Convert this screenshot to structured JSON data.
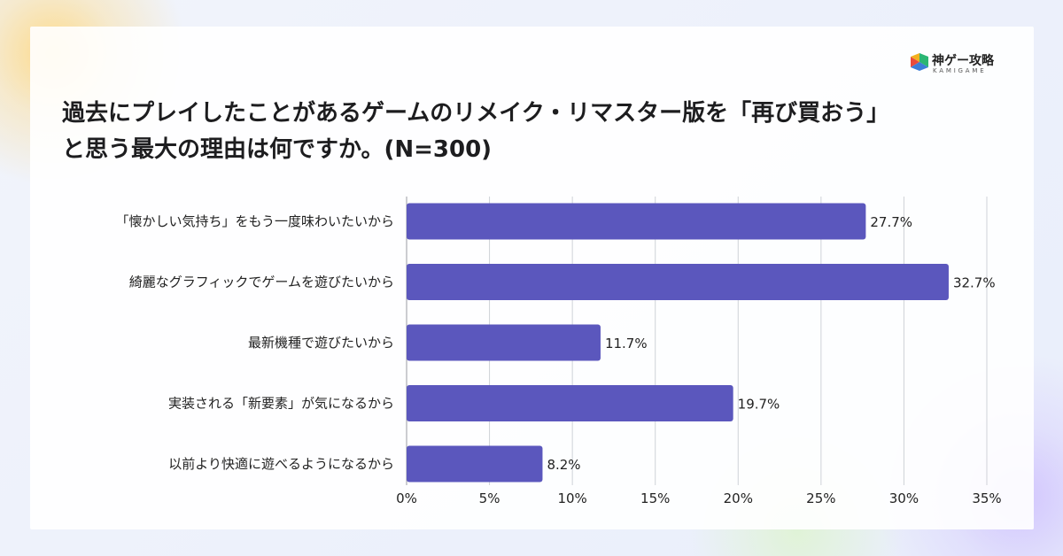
{
  "title_line1": "過去にプレイしたことがあるゲームのリメイク・リマスター版を「再び買おう」",
  "title_line2": "と思う最大の理由は何ですか。(N=300)",
  "logo": {
    "name": "神ゲー攻略",
    "sub": "KAMIGAME",
    "colors": [
      "#e94b3c",
      "#f2b01e",
      "#2bb673",
      "#3b7dd8"
    ]
  },
  "colors": {
    "bar": "#5b57bd",
    "grid": "#cfd2d8"
  },
  "chart_data": {
    "type": "bar",
    "orientation": "horizontal",
    "title": "過去にプレイしたことがあるゲームのリメイク・リマスター版を「再び買おう」と思う最大の理由は何ですか。(N=300)",
    "categories": [
      "「懐かしい気持ち」をもう一度味わいたいから",
      "綺麗なグラフィックでゲームを遊びたいから",
      "最新機種で遊びたいから",
      "実装される「新要素」が気になるから",
      "以前より快適に遊べるようになるから"
    ],
    "values": [
      27.7,
      32.7,
      11.7,
      19.7,
      8.2
    ],
    "value_labels": [
      "27.7%",
      "32.7%",
      "11.7%",
      "19.7%",
      "8.2%"
    ],
    "xlim": [
      0,
      35
    ],
    "ticks": [
      0,
      5,
      10,
      15,
      20,
      25,
      30,
      35
    ],
    "tick_labels": [
      "0%",
      "5%",
      "10%",
      "15%",
      "20%",
      "25%",
      "30%",
      "35%"
    ],
    "grid": true,
    "legend": "none"
  }
}
